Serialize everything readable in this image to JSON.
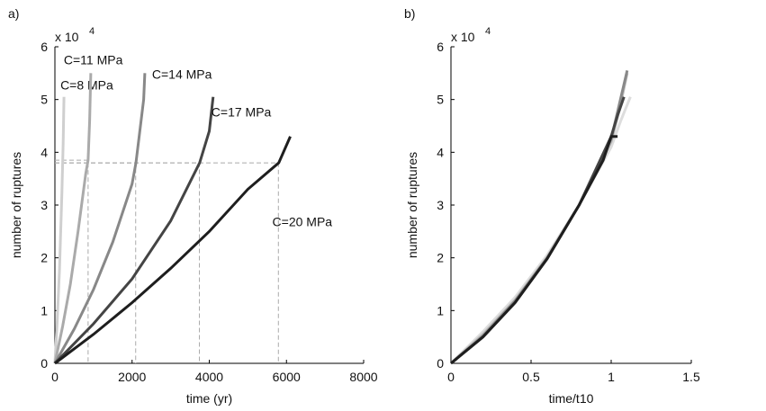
{
  "chart_data": [
    {
      "type": "line",
      "panel_label": "a)",
      "x_label": "time (yr)",
      "y_label": "number of ruptures",
      "y_multiplier": "x 10",
      "y_multiplier_exponent": "4",
      "xlim": [
        0,
        8000
      ],
      "xticks": [
        0,
        2000,
        4000,
        6000,
        8000
      ],
      "ylim": [
        0,
        6
      ],
      "yticks": [
        0,
        1,
        2,
        3,
        4,
        5,
        6
      ],
      "series": [
        {
          "name": "C=8 MPa",
          "color": "#cfcfcf",
          "x": [
            0,
            60,
            120,
            180,
            215,
            235
          ],
          "values": [
            0,
            0.8,
            1.8,
            3.2,
            4.2,
            5.05
          ]
        },
        {
          "name": "C=11 MPa",
          "color": "#aaaaaa",
          "x": [
            0,
            200,
            400,
            600,
            800,
            860,
            900,
            930
          ],
          "values": [
            0,
            0.7,
            1.5,
            2.5,
            3.6,
            3.85,
            4.6,
            5.5
          ]
        },
        {
          "name": "C=14 MPa",
          "color": "#888888",
          "x": [
            0,
            500,
            1000,
            1500,
            2000,
            2100,
            2300,
            2330
          ],
          "values": [
            0,
            0.65,
            1.4,
            2.3,
            3.4,
            3.8,
            5.0,
            5.5
          ]
        },
        {
          "name": "C=17 MPa",
          "color": "#444444",
          "x": [
            0,
            1000,
            2000,
            3000,
            3750,
            4000,
            4100
          ],
          "values": [
            0,
            0.75,
            1.6,
            2.7,
            3.8,
            4.4,
            5.05
          ]
        },
        {
          "name": "C=20 MPa",
          "color": "#1e1e1e",
          "x": [
            0,
            1000,
            2000,
            3000,
            4000,
            5000,
            5800,
            6100
          ],
          "values": [
            0,
            0.55,
            1.15,
            1.8,
            2.5,
            3.3,
            3.8,
            4.3
          ]
        }
      ],
      "reference_lines": [
        {
          "x": 860,
          "y": 3.85
        },
        {
          "x": 2093,
          "y": 3.8
        },
        {
          "x": 3744,
          "y": 3.8
        },
        {
          "x": 5791,
          "y": 3.8
        }
      ]
    },
    {
      "type": "line",
      "panel_label": "b)",
      "x_label": "time/t10",
      "y_label": "number of ruptures",
      "y_multiplier": "x 10",
      "y_multiplier_exponent": "4",
      "xlim": [
        0,
        1.5
      ],
      "xticks": [
        0,
        0.5,
        1,
        1.5
      ],
      "ylim": [
        0,
        6
      ],
      "yticks": [
        0,
        1,
        2,
        3,
        4,
        5,
        6
      ],
      "series": [
        {
          "color": "#dddddd",
          "x": [
            0,
            0.2,
            0.4,
            0.6,
            0.8,
            1.0,
            1.06,
            1.12
          ],
          "values": [
            0,
            0.6,
            1.25,
            2.05,
            3.0,
            4.1,
            4.6,
            5.05
          ]
        },
        {
          "color": "#bbbbbb",
          "x": [
            0,
            0.2,
            0.4,
            0.6,
            0.8,
            1.0,
            1.05,
            1.1
          ],
          "values": [
            0,
            0.55,
            1.2,
            2.0,
            3.0,
            4.2,
            4.8,
            5.5
          ]
        },
        {
          "color": "#888888",
          "x": [
            0,
            0.2,
            0.4,
            0.6,
            0.8,
            1.0,
            1.05,
            1.1
          ],
          "values": [
            0,
            0.52,
            1.18,
            2.0,
            3.0,
            4.25,
            4.9,
            5.55
          ]
        },
        {
          "color": "#444444",
          "x": [
            0,
            0.2,
            0.4,
            0.6,
            0.8,
            1.0,
            1.04,
            1.08
          ],
          "values": [
            0,
            0.5,
            1.15,
            1.98,
            3.0,
            4.3,
            4.7,
            5.05
          ]
        },
        {
          "color": "#1e1e1e",
          "x": [
            0,
            0.2,
            0.4,
            0.6,
            0.8,
            0.95,
            1.0,
            1.04
          ],
          "values": [
            0,
            0.5,
            1.15,
            1.98,
            3.0,
            3.85,
            4.3,
            4.3
          ]
        }
      ]
    }
  ]
}
